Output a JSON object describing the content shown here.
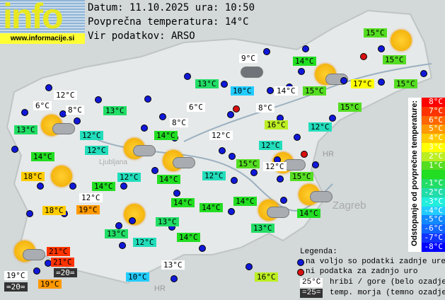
{
  "header": {
    "logo_text": "info",
    "logo_url": "www.informacije.si",
    "date_line": "Datum: 11.10.2025 ura: 10:50",
    "avg_line": "Povprečna temperatura: 14°C",
    "source_line": "Vir podatkov: ARSO"
  },
  "map_labels": [
    "HR",
    "HR",
    "Zagreb",
    "Ljubljana"
  ],
  "labels": [
    {
      "t": "15°C",
      "c": "#55dd22"
    },
    {
      "t": "9°C",
      "c": "white"
    },
    {
      "t": "14°C",
      "c": "#22dd22"
    },
    {
      "t": "15°C",
      "c": "#55dd22"
    },
    {
      "t": "13°C",
      "c": "#22dd66"
    },
    {
      "t": "10°C",
      "c": "#22ccff"
    },
    {
      "t": "14°C",
      "c": "white"
    },
    {
      "t": "15°C",
      "c": "#55dd22"
    },
    {
      "t": "17°C",
      "c": "#ffff00"
    },
    {
      "t": "15°C",
      "c": "#55dd22"
    },
    {
      "t": "12°C",
      "c": "white"
    },
    {
      "t": "6°C",
      "c": "white"
    },
    {
      "t": "8°C",
      "c": "white"
    },
    {
      "t": "13°C",
      "c": "#22dd66"
    },
    {
      "t": "6°C",
      "c": "white"
    },
    {
      "t": "8°C",
      "c": "white"
    },
    {
      "t": "15°C",
      "c": "#55dd22"
    },
    {
      "t": "13°C",
      "c": "#22dd66"
    },
    {
      "t": "12°C",
      "c": "#22ddbb"
    },
    {
      "t": "8°C",
      "c": "white"
    },
    {
      "t": "14°C",
      "c": "#22dd22"
    },
    {
      "t": "16°C",
      "c": "#bbee22"
    },
    {
      "t": "12°C",
      "c": "#22ddbb"
    },
    {
      "t": "12°C",
      "c": "white"
    },
    {
      "t": "12°C",
      "c": "#22ddbb"
    },
    {
      "t": "12°C",
      "c": "#22ddbb"
    },
    {
      "t": "14°C",
      "c": "#22dd22"
    },
    {
      "t": "15°C",
      "c": "#55dd22"
    },
    {
      "t": "12°C",
      "c": "white"
    },
    {
      "t": "15°C",
      "c": "#55dd22"
    },
    {
      "t": "18°C",
      "c": "#ffcc00"
    },
    {
      "t": "12°C",
      "c": "#22ddbb"
    },
    {
      "t": "14°C",
      "c": "#22dd22"
    },
    {
      "t": "12°C",
      "c": "#22ddbb"
    },
    {
      "t": "14°C",
      "c": "#22dd22"
    },
    {
      "t": "12°C",
      "c": "white"
    },
    {
      "t": "18°C",
      "c": "#ffcc00"
    },
    {
      "t": "19°C",
      "c": "#ff9900"
    },
    {
      "t": "14°C",
      "c": "#22dd22"
    },
    {
      "t": "14°C",
      "c": "#22dd22"
    },
    {
      "t": "14°C",
      "c": "#22dd22"
    },
    {
      "t": "14°C",
      "c": "#22dd22"
    },
    {
      "t": "13°C",
      "c": "#22dd66"
    },
    {
      "t": "13°C",
      "c": "#22dd66"
    },
    {
      "t": "12°C",
      "c": "#22ddbb"
    },
    {
      "t": "14°C",
      "c": "#22dd22"
    },
    {
      "t": "13°C",
      "c": "#22dd66"
    },
    {
      "t": "21°C",
      "c": "#ff3300"
    },
    {
      "t": "21°C",
      "c": "#ff3300"
    },
    {
      "t": "=20=",
      "c": "dark"
    },
    {
      "t": "19°C",
      "c": "white"
    },
    {
      "t": "=20=",
      "c": "dark"
    },
    {
      "t": "19°C",
      "c": "#ff9900"
    },
    {
      "t": "13°C",
      "c": "white"
    },
    {
      "t": "10°C",
      "c": "#22ccff"
    },
    {
      "t": "16°C",
      "c": "#bbee22"
    }
  ],
  "scale": {
    "title": "Odstopanje od povprečne temperature:",
    "steps": [
      {
        "t": "8°C",
        "c": "#ff0000"
      },
      {
        "t": "7°C",
        "c": "#ff3300"
      },
      {
        "t": "6°C",
        "c": "#ff6600"
      },
      {
        "t": "5°C",
        "c": "#ff9900"
      },
      {
        "t": "4°C",
        "c": "#ffcc00"
      },
      {
        "t": "3°C",
        "c": "#ffff00"
      },
      {
        "t": "2°C",
        "c": "#bbee22"
      },
      {
        "t": "1°C",
        "c": "#55dd22"
      },
      {
        "t": "",
        "c": "#22dd22"
      },
      {
        "t": "-1°C",
        "c": "#22dd66"
      },
      {
        "t": "-2°C",
        "c": "#22ddaa"
      },
      {
        "t": "-3°C",
        "c": "#22eedd"
      },
      {
        "t": "-4°C",
        "c": "#22ccff"
      },
      {
        "t": "-5°C",
        "c": "#1188ff"
      },
      {
        "t": "-6°C",
        "c": "#1166ff"
      },
      {
        "t": "-7°C",
        "c": "#1133ff"
      },
      {
        "t": "-8°C",
        "c": "#0000ff"
      }
    ]
  },
  "legend": {
    "title": "Legenda:",
    "blue": "na voljo so podatki zadnje ure",
    "red": "ni podatka za zadnjo uro",
    "white_sample": "25°C",
    "white_text": "hribi / gore (belo ozadje)",
    "dark_sample": "=25=",
    "dark_text": "temp. morja (temno ozadje)"
  }
}
